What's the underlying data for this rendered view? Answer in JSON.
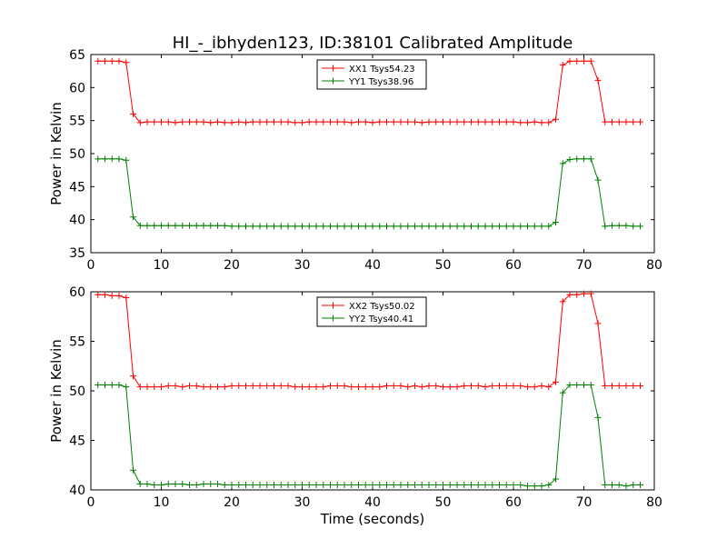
{
  "title": "HI_-_ibhyden123, ID:38101 Calibrated Amplitude",
  "colors": {
    "red": "#ff0000",
    "green": "#008000"
  },
  "chart_data": [
    {
      "type": "line",
      "title": "HI_-_ibhyden123, ID:38101 Calibrated Amplitude",
      "xlabel": "",
      "ylabel": "Power in Kelvin",
      "xlim": [
        0,
        80
      ],
      "ylim": [
        35,
        65
      ],
      "xticks": [
        "0",
        "10",
        "20",
        "30",
        "40",
        "50",
        "60",
        "70",
        "80"
      ],
      "yticks": [
        "35",
        "40",
        "45",
        "50",
        "55",
        "60",
        "65"
      ],
      "grid": false,
      "legend": "top-center",
      "x": [
        1,
        2,
        3,
        4,
        5,
        6,
        7,
        8,
        9,
        10,
        11,
        12,
        13,
        14,
        15,
        16,
        17,
        18,
        19,
        20,
        21,
        22,
        23,
        24,
        25,
        26,
        27,
        28,
        29,
        30,
        31,
        32,
        33,
        34,
        35,
        36,
        37,
        38,
        39,
        40,
        41,
        42,
        43,
        44,
        45,
        46,
        47,
        48,
        49,
        50,
        51,
        52,
        53,
        54,
        55,
        56,
        57,
        58,
        59,
        60,
        61,
        62,
        63,
        64,
        65,
        66,
        67,
        68,
        69,
        70,
        71,
        72,
        73,
        74,
        75,
        76,
        77,
        78
      ],
      "series": [
        {
          "name": "XX1 Tsys54.23",
          "color": "#ff0000",
          "values": [
            64,
            64,
            64,
            64,
            63.8,
            56,
            54.7,
            54.8,
            54.8,
            54.8,
            54.8,
            54.7,
            54.8,
            54.8,
            54.8,
            54.8,
            54.7,
            54.8,
            54.7,
            54.7,
            54.8,
            54.7,
            54.8,
            54.8,
            54.8,
            54.8,
            54.8,
            54.8,
            54.7,
            54.7,
            54.8,
            54.8,
            54.8,
            54.8,
            54.8,
            54.8,
            54.7,
            54.8,
            54.8,
            54.7,
            54.8,
            54.8,
            54.8,
            54.8,
            54.8,
            54.8,
            54.7,
            54.8,
            54.8,
            54.8,
            54.8,
            54.8,
            54.8,
            54.8,
            54.8,
            54.8,
            54.8,
            54.8,
            54.8,
            54.8,
            54.7,
            54.7,
            54.8,
            54.7,
            54.7,
            55.2,
            63.4,
            64,
            64,
            64,
            64,
            61.1,
            54.8,
            54.8,
            54.8,
            54.8,
            54.8,
            54.8
          ]
        },
        {
          "name": "YY1 Tsys38.96",
          "color": "#008000",
          "values": [
            49.2,
            49.2,
            49.2,
            49.2,
            49,
            40.4,
            39.1,
            39.1,
            39.1,
            39.1,
            39.1,
            39.1,
            39.1,
            39.1,
            39.1,
            39.1,
            39.1,
            39.1,
            39.1,
            39,
            39,
            39,
            39,
            39,
            39,
            39,
            39,
            39,
            39,
            39,
            39,
            39,
            39,
            39,
            39,
            39,
            39,
            39,
            39,
            39,
            39,
            39,
            39,
            39,
            39,
            39,
            39,
            39,
            39,
            39,
            39,
            39,
            39,
            39,
            39,
            39,
            39,
            39,
            39,
            39,
            39,
            39,
            39,
            39,
            39,
            39.6,
            48.5,
            49.1,
            49.2,
            49.2,
            49.2,
            46,
            39,
            39.1,
            39.1,
            39.1,
            39,
            39
          ]
        }
      ]
    },
    {
      "type": "line",
      "title": "",
      "xlabel": "Time (seconds)",
      "ylabel": "Power in Kelvin",
      "xlim": [
        0,
        80
      ],
      "ylim": [
        40,
        60
      ],
      "xticks": [
        "0",
        "10",
        "20",
        "30",
        "40",
        "50",
        "60",
        "70",
        "80"
      ],
      "yticks": [
        "40",
        "45",
        "50",
        "55",
        "60"
      ],
      "grid": false,
      "legend": "top-center",
      "x": [
        1,
        2,
        3,
        4,
        5,
        6,
        7,
        8,
        9,
        10,
        11,
        12,
        13,
        14,
        15,
        16,
        17,
        18,
        19,
        20,
        21,
        22,
        23,
        24,
        25,
        26,
        27,
        28,
        29,
        30,
        31,
        32,
        33,
        34,
        35,
        36,
        37,
        38,
        39,
        40,
        41,
        42,
        43,
        44,
        45,
        46,
        47,
        48,
        49,
        50,
        51,
        52,
        53,
        54,
        55,
        56,
        57,
        58,
        59,
        60,
        61,
        62,
        63,
        64,
        65,
        66,
        67,
        68,
        69,
        70,
        71,
        72,
        73,
        74,
        75,
        76,
        77,
        78
      ],
      "series": [
        {
          "name": "XX2 Tsys50.02",
          "color": "#ff0000",
          "values": [
            59.7,
            59.7,
            59.6,
            59.6,
            59.4,
            51.5,
            50.4,
            50.4,
            50.4,
            50.4,
            50.5,
            50.5,
            50.4,
            50.5,
            50.5,
            50.4,
            50.4,
            50.4,
            50.4,
            50.5,
            50.5,
            50.5,
            50.5,
            50.5,
            50.5,
            50.5,
            50.5,
            50.5,
            50.4,
            50.4,
            50.4,
            50.4,
            50.4,
            50.5,
            50.5,
            50.5,
            50.4,
            50.4,
            50.4,
            50.4,
            50.4,
            50.5,
            50.5,
            50.5,
            50.4,
            50.5,
            50.4,
            50.5,
            50.5,
            50.4,
            50.4,
            50.4,
            50.5,
            50.5,
            50.5,
            50.4,
            50.5,
            50.5,
            50.5,
            50.5,
            50.5,
            50.4,
            50.4,
            50.5,
            50.4,
            50.9,
            59,
            59.7,
            59.7,
            59.8,
            59.8,
            56.8,
            50.5,
            50.5,
            50.5,
            50.5,
            50.5,
            50.5
          ]
        },
        {
          "name": "YY2 Tsys40.41",
          "color": "#008000",
          "values": [
            50.6,
            50.6,
            50.6,
            50.6,
            50.4,
            42,
            40.6,
            40.6,
            40.5,
            40.5,
            40.6,
            40.6,
            40.6,
            40.5,
            40.5,
            40.6,
            40.6,
            40.6,
            40.5,
            40.5,
            40.5,
            40.5,
            40.5,
            40.5,
            40.5,
            40.5,
            40.5,
            40.5,
            40.5,
            40.5,
            40.5,
            40.5,
            40.5,
            40.5,
            40.5,
            40.5,
            40.5,
            40.5,
            40.5,
            40.5,
            40.5,
            40.5,
            40.5,
            40.5,
            40.5,
            40.5,
            40.5,
            40.5,
            40.5,
            40.5,
            40.5,
            40.5,
            40.5,
            40.5,
            40.5,
            40.5,
            40.5,
            40.5,
            40.5,
            40.5,
            40.5,
            40.4,
            40.4,
            40.4,
            40.5,
            41.1,
            49.8,
            50.6,
            50.6,
            50.6,
            50.6,
            47.3,
            40.5,
            40.5,
            40.5,
            40.4,
            40.5,
            40.5
          ]
        }
      ]
    }
  ]
}
